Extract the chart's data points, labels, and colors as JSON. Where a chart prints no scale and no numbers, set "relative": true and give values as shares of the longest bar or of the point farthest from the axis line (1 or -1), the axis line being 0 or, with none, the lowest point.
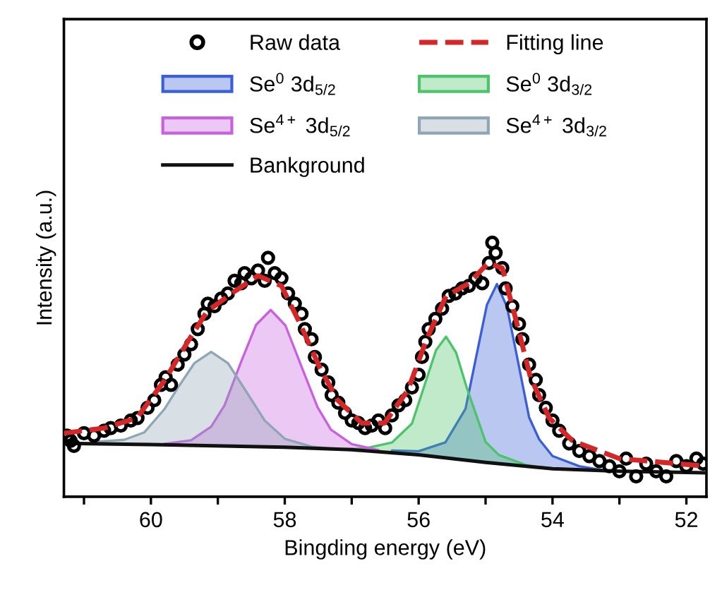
{
  "chart_data": {
    "type": "line",
    "xlabel": "Bingding energy (eV)",
    "ylabel": "Intensity (a.u.)",
    "relative": true,
    "tick_labels": "x",
    "grid": false,
    "legend": "top",
    "xlim": [
      61.3,
      51.7
    ],
    "xticks": [
      {
        "value": 61,
        "label": null
      },
      60,
      {
        "value": 59,
        "label": null
      },
      58,
      {
        "value": 57,
        "label": null
      },
      56,
      {
        "value": 55,
        "label": null
      },
      54,
      {
        "value": 53,
        "label": null
      },
      52
    ],
    "series": [
      {
        "name": "Raw data",
        "type": "scatter",
        "marker": "circle",
        "color": "#000000",
        "x": [
          61.25,
          61.2,
          61.15,
          61.0,
          60.85,
          60.7,
          60.6,
          60.45,
          60.3,
          60.2,
          60.05,
          59.95,
          59.85,
          59.78,
          59.7,
          59.6,
          59.5,
          59.4,
          59.3,
          59.2,
          59.15,
          59.05,
          58.95,
          58.85,
          58.75,
          58.65,
          58.6,
          58.5,
          58.4,
          58.3,
          58.25,
          58.15,
          58.05,
          57.95,
          57.85,
          57.75,
          57.7,
          57.6,
          57.55,
          57.45,
          57.35,
          57.3,
          57.2,
          57.1,
          57.0,
          56.9,
          56.8,
          56.7,
          56.6,
          56.5,
          56.4,
          56.3,
          56.2,
          56.1,
          56.0,
          55.95,
          55.9,
          55.85,
          55.75,
          55.65,
          55.55,
          55.45,
          55.35,
          55.25,
          55.15,
          55.05,
          54.95,
          54.9,
          54.85,
          54.75,
          54.7,
          54.6,
          54.5,
          54.45,
          54.35,
          54.25,
          54.2,
          54.1,
          54.0,
          53.9,
          53.75,
          53.6,
          53.45,
          53.3,
          53.15,
          53.0,
          52.9,
          52.75,
          52.6,
          52.45,
          52.3,
          52.15,
          52.0,
          51.85,
          51.75
        ],
        "values": [
          0.24,
          0.22,
          0.2,
          0.25,
          0.24,
          0.26,
          0.27,
          0.28,
          0.3,
          0.31,
          0.35,
          0.38,
          0.44,
          0.47,
          0.44,
          0.52,
          0.56,
          0.6,
          0.66,
          0.72,
          0.76,
          0.75,
          0.78,
          0.8,
          0.85,
          0.84,
          0.88,
          0.86,
          0.89,
          0.85,
          0.94,
          0.88,
          0.86,
          0.8,
          0.76,
          0.72,
          0.66,
          0.62,
          0.55,
          0.5,
          0.45,
          0.4,
          0.37,
          0.33,
          0.3,
          0.29,
          0.27,
          0.28,
          0.3,
          0.27,
          0.32,
          0.36,
          0.38,
          0.43,
          0.48,
          0.55,
          0.61,
          0.66,
          0.7,
          0.74,
          0.79,
          0.8,
          0.82,
          0.83,
          0.86,
          0.84,
          0.92,
          1.0,
          0.96,
          0.9,
          0.82,
          0.75,
          0.68,
          0.62,
          0.52,
          0.46,
          0.4,
          0.35,
          0.3,
          0.26,
          0.21,
          0.18,
          0.16,
          0.14,
          0.12,
          0.1,
          0.15,
          0.08,
          0.13,
          0.1,
          0.08,
          0.14,
          0.12,
          0.15,
          0.13
        ]
      },
      {
        "name": "Fitting line",
        "line_style": "dashed",
        "color": "#d62728",
        "x": [
          61.3,
          60.7,
          60.21,
          59.79,
          59.45,
          59.16,
          58.74,
          58.4,
          58.05,
          57.77,
          57.48,
          57.21,
          56.85,
          56.51,
          56.16,
          55.88,
          55.59,
          55.25,
          54.96,
          54.75,
          54.54,
          54.33,
          54.05,
          53.7,
          53.0,
          51.7
        ],
        "values": [
          0.25,
          0.27,
          0.31,
          0.46,
          0.61,
          0.73,
          0.81,
          0.87,
          0.83,
          0.68,
          0.51,
          0.38,
          0.29,
          0.29,
          0.42,
          0.62,
          0.79,
          0.84,
          0.92,
          0.9,
          0.69,
          0.47,
          0.31,
          0.22,
          0.15,
          0.12
        ]
      },
      {
        "name": "Se$^{0}$ 3d$_{5/2}$",
        "type": "area",
        "color": "#3a5fd8",
        "x": [
          56.4,
          56.0,
          55.6,
          55.3,
          55.1,
          54.98,
          54.83,
          54.68,
          54.53,
          54.35,
          54.2,
          54.0,
          53.6,
          53.2
        ],
        "values": [
          0.182,
          0.179,
          0.214,
          0.346,
          0.602,
          0.755,
          0.837,
          0.747,
          0.551,
          0.313,
          0.226,
          0.16,
          0.12,
          0.102
        ]
      },
      {
        "name": "Se$^{0}$ 3d$_{3/2}$",
        "type": "area",
        "color": "#4cc46a",
        "x": [
          57.2,
          56.8,
          56.4,
          56.1,
          55.9,
          55.74,
          55.59,
          55.44,
          55.28,
          55.0,
          54.8,
          54.4,
          54.0
        ],
        "values": [
          0.187,
          0.19,
          0.213,
          0.288,
          0.448,
          0.577,
          0.63,
          0.567,
          0.428,
          0.216,
          0.164,
          0.125,
          0.11
        ]
      },
      {
        "name": "Se$^{4+}$ 3d$_{5/2}$",
        "type": "area",
        "color": "#c860e0",
        "x": [
          59.8,
          59.4,
          59.1,
          58.9,
          58.66,
          58.43,
          58.21,
          57.99,
          57.76,
          57.51,
          57.31,
          57.0,
          56.6
        ],
        "values": [
          0.208,
          0.222,
          0.276,
          0.36,
          0.526,
          0.676,
          0.735,
          0.674,
          0.519,
          0.352,
          0.264,
          0.207,
          0.183
        ]
      },
      {
        "name": "Se$^{4+}$ 3d$_{3/2}$",
        "type": "area",
        "color": "#8fa6b4",
        "x": [
          60.9,
          60.4,
          60.1,
          59.8,
          59.6,
          59.35,
          59.1,
          58.85,
          58.6,
          58.3,
          58.0,
          57.6,
          57.2
        ],
        "values": [
          0.215,
          0.224,
          0.253,
          0.344,
          0.428,
          0.526,
          0.57,
          0.526,
          0.424,
          0.3,
          0.228,
          0.197,
          0.187
        ]
      },
      {
        "name": "Bankground",
        "line_style": "solid",
        "color": "#111111",
        "x": [
          61.3,
          60.0,
          58.0,
          57.0,
          56.0,
          55.0,
          54.0,
          53.0,
          51.7
        ],
        "values": [
          0.21,
          0.205,
          0.195,
          0.185,
          0.165,
          0.135,
          0.11,
          0.1,
          0.094
        ]
      }
    ]
  }
}
